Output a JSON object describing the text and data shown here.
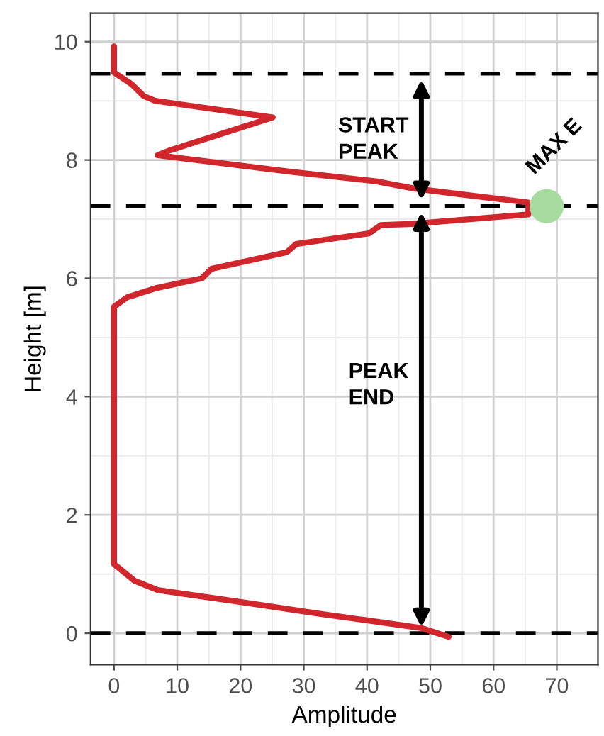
{
  "chart_data": {
    "type": "line",
    "xlabel": "Amplitude",
    "ylabel": "Height [m]",
    "xlim": [
      -3.7,
      76.5
    ],
    "ylim": [
      -0.53,
      10.48
    ],
    "xticks": [
      0,
      10,
      20,
      30,
      40,
      50,
      60,
      70
    ],
    "yticks": [
      0,
      2,
      4,
      6,
      8,
      10
    ],
    "grid": true,
    "series": [
      {
        "color": "#d0262c",
        "x": [
          0,
          0,
          2.8,
          4.7,
          6.5,
          25.1,
          8.75,
          6.9,
          28.1,
          41.4,
          47.3,
          54.8,
          65.5,
          65.5,
          47.3,
          42.2,
          40.3,
          28.8,
          27.3,
          15.4,
          13.9,
          6.5,
          2.1,
          0,
          0,
          3.2,
          6.9,
          19.9,
          32.5,
          48.5,
          52.9
        ],
        "values": [
          9.92,
          9.48,
          9.28,
          9.08,
          9.0,
          8.72,
          8.16,
          8.08,
          7.8,
          7.64,
          7.52,
          7.42,
          7.28,
          7.08,
          6.92,
          6.9,
          6.76,
          6.58,
          6.44,
          6.16,
          6.0,
          5.83,
          5.68,
          5.52,
          1.17,
          0.89,
          0.73,
          0.53,
          0.33,
          0.09,
          -0.06
        ]
      },
      {
        "type": "scatter",
        "name": "MAX E",
        "color": "#a8dba0",
        "x": [
          68.4
        ],
        "values": [
          7.22
        ]
      }
    ],
    "ref_lines": [
      {
        "axis": "y",
        "value": 9.46,
        "color": "#000000",
        "line_style": "dashed"
      },
      {
        "axis": "y",
        "value": 7.22,
        "color": "#000000",
        "line_style": "dashed"
      },
      {
        "axis": "y",
        "value": 0,
        "color": "#000000",
        "line_style": "dashed"
      }
    ],
    "annotations": [
      "START\nPEAK",
      "PEAK\nEND"
    ]
  }
}
